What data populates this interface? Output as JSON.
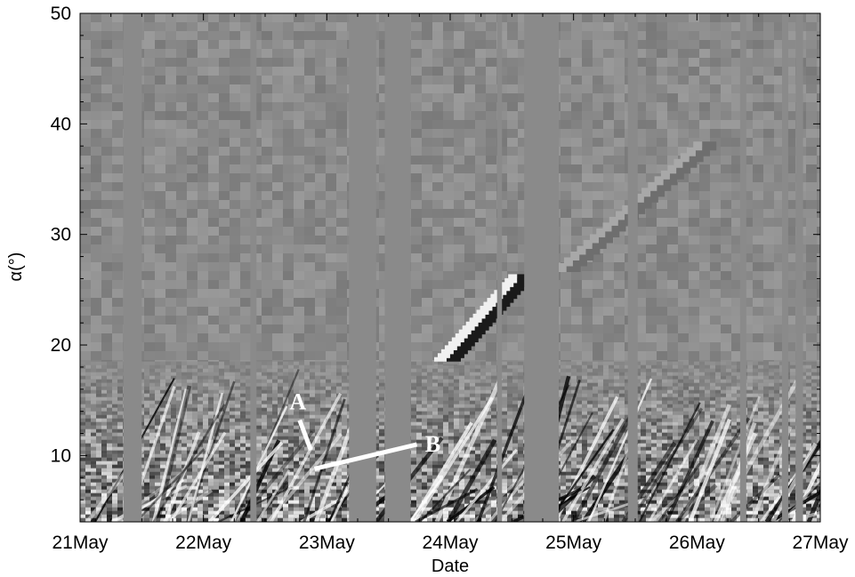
{
  "chart_data": {
    "type": "heatmap",
    "title": "",
    "xlabel": "Date",
    "ylabel": "α(°)",
    "x_ticks": [
      {
        "label": "21May",
        "day": 0
      },
      {
        "label": "22May",
        "day": 1
      },
      {
        "label": "23May",
        "day": 2
      },
      {
        "label": "24May",
        "day": 3
      },
      {
        "label": "25May",
        "day": 4
      },
      {
        "label": "26May",
        "day": 5
      },
      {
        "label": "27May",
        "day": 6
      }
    ],
    "xlim": [
      "21May",
      "27May"
    ],
    "y_ticks": [
      10,
      20,
      30,
      40,
      50
    ],
    "ylim": [
      4,
      50
    ],
    "colormap": "grayscale",
    "background_color": "#8a8a8a",
    "grid": false,
    "data_gaps_days": [
      [
        0.35,
        0.5
      ],
      [
        1.38,
        1.43
      ],
      [
        2.18,
        2.4
      ],
      [
        2.47,
        2.68
      ],
      [
        3.38,
        3.42
      ],
      [
        3.6,
        3.88
      ],
      [
        4.44,
        4.52
      ],
      [
        5.35,
        5.4
      ],
      [
        5.69,
        5.74
      ],
      [
        5.8,
        5.86
      ]
    ],
    "annotations": [
      {
        "label": "A",
        "line_from": {
          "day": 1.78,
          "alpha": 13.2
        },
        "line_to": {
          "day": 1.87,
          "alpha": 10.5
        }
      },
      {
        "label": "B",
        "line_from": {
          "day": 2.73,
          "alpha": 11.0
        },
        "line_to": {
          "day": 1.9,
          "alpha": 8.8
        }
      }
    ],
    "features": [
      {
        "name": "upper-stripe",
        "start_day": 3.0,
        "start_alpha": 18.5,
        "end_day": 3.6,
        "end_alpha": 26
      },
      {
        "name": "faint-stripe",
        "start_day": 4.0,
        "start_alpha": 27,
        "end_day": 5.1,
        "end_alpha": 38
      }
    ]
  }
}
